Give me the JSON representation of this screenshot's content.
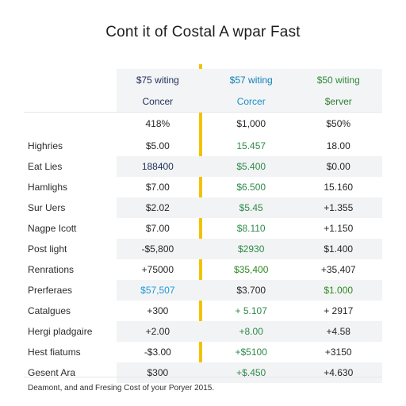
{
  "title": "Cont it of Costal A wpar Fast",
  "columns": [
    {
      "header": "$75 witing",
      "sub": "Concer"
    },
    {
      "header": "$57 witing",
      "sub": "Corcer"
    },
    {
      "header": "$50 witing",
      "sub": "$erver"
    }
  ],
  "top_values": [
    "418%",
    "$1,000",
    "$50%"
  ],
  "rows": [
    {
      "label": "Highries",
      "values": [
        "$5.00",
        "15.457",
        "18.00"
      ]
    },
    {
      "label": "Eat Lies",
      "values": [
        "188400",
        "$5.400",
        "$0.00"
      ]
    },
    {
      "label": "Hamlighs",
      "values": [
        "$7.00",
        "$6.500",
        "15.160"
      ]
    },
    {
      "label": "Sur Uers",
      "values": [
        "$2.02",
        "$5.45",
        "+1.355"
      ]
    },
    {
      "label": "Nagpe Icott",
      "values": [
        "$7.00",
        "$8.110",
        "+1.150"
      ]
    },
    {
      "label": "Post light",
      "values": [
        "-$5,800",
        "$2930",
        "$1.400"
      ]
    },
    {
      "label": "Renrations",
      "values": [
        "+75000",
        "$35,400",
        "+35,407"
      ]
    },
    {
      "label": "Prerferaes",
      "values": [
        "$57,507",
        "$3.700",
        "$1.000"
      ]
    },
    {
      "label": "Catalgues",
      "values": [
        "+300",
        "+ 5.107",
        "+ 2917"
      ]
    },
    {
      "label": "Hergi pladgaire",
      "values": [
        "+2.00",
        "+8.00",
        "+4.58"
      ]
    },
    {
      "label": "Hest fiatums",
      "values": [
        "-$3.00",
        "+$5100",
        "+3150"
      ]
    },
    {
      "label": "Gesent Ara",
      "values": [
        "$300",
        "+$.450",
        "+4.630"
      ]
    }
  ],
  "footnote": "Deamont, and and Fresing Cost of your Poryer 2015.",
  "colors": {
    "accent_bar": "#f2c200",
    "blue": "#1e9ad6",
    "green": "#2e8a1f"
  }
}
